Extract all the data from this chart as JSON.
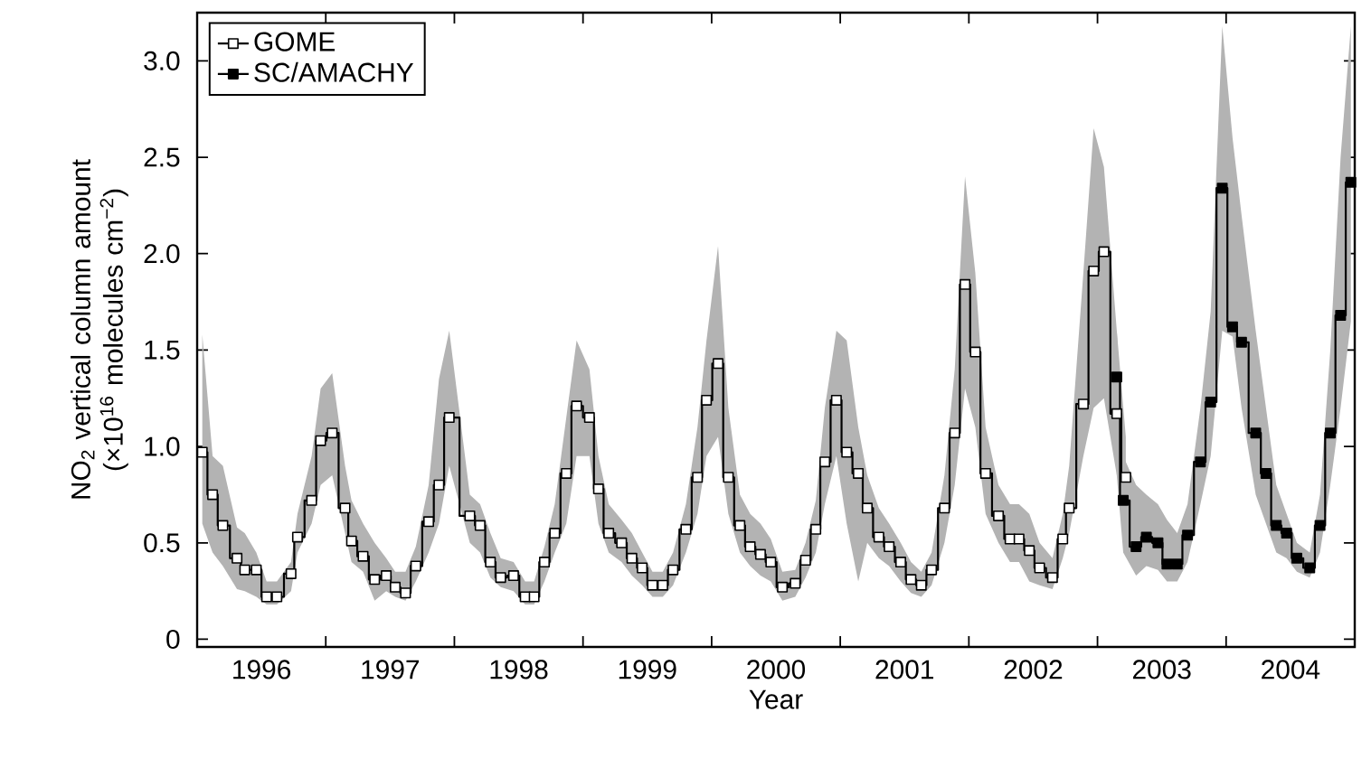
{
  "chart_data": {
    "type": "step",
    "xlabel": "Year",
    "ylabel": "NO$_{2}$ vertical column amount (×10$^{16}$ molecules cm$^{−2}$)",
    "xlim": [
      1996,
      2005
    ],
    "ylim": [
      -0.04,
      3.25
    ],
    "xticks": [
      {
        "value": 1997,
        "label": null
      },
      {
        "value": 1998,
        "label": null
      },
      {
        "value": 1999,
        "label": null
      },
      {
        "value": 2000,
        "label": null
      },
      {
        "value": 2001,
        "label": null
      },
      {
        "value": 2002,
        "label": null
      },
      {
        "value": 2003,
        "label": null
      },
      {
        "value": 2004,
        "label": null
      },
      {
        "value": 1996.5,
        "label": "1996"
      },
      {
        "value": 1997.5,
        "label": "1997"
      },
      {
        "value": 1998.5,
        "label": "1998"
      },
      {
        "value": 1999.5,
        "label": "1999"
      },
      {
        "value": 2000.5,
        "label": "2000"
      },
      {
        "value": 2001.5,
        "label": "2001"
      },
      {
        "value": 2002.5,
        "label": "2002"
      },
      {
        "value": 2003.5,
        "label": "2003"
      },
      {
        "value": 2004.5,
        "label": "2004"
      }
    ],
    "yticks": [
      0,
      0.5,
      {
        "value": 1,
        "label": "1.0"
      },
      1.5,
      {
        "value": 2,
        "label": "2.0"
      },
      2.5,
      {
        "value": 3,
        "label": "3.0"
      }
    ],
    "legend": "top left",
    "marker": "square",
    "line_style": "solid",
    "grid": false,
    "series": [
      {
        "name": "GOME",
        "color": "#000000",
        "x": [
          1996.04,
          1996.12,
          1996.2,
          1996.31,
          1996.37,
          1996.46,
          1996.54,
          1996.62,
          1996.73,
          1996.78,
          1996.89,
          1996.96,
          1997.05,
          1997.15,
          1997.2,
          1997.29,
          1997.38,
          1997.47,
          1997.54,
          1997.62,
          1997.7,
          1997.8,
          1997.88,
          1997.96,
          1998.12,
          1998.2,
          1998.28,
          1998.36,
          1998.46,
          1998.55,
          1998.62,
          1998.7,
          1998.78,
          1998.87,
          1998.95,
          1999.05,
          1999.12,
          1999.2,
          1999.3,
          1999.38,
          1999.46,
          1999.54,
          1999.62,
          1999.7,
          1999.8,
          1999.89,
          1999.96,
          2000.05,
          2000.13,
          2000.22,
          2000.3,
          2000.38,
          2000.46,
          2000.55,
          2000.65,
          2000.73,
          2000.81,
          2000.88,
          2000.97,
          2001.05,
          2001.14,
          2001.21,
          2001.3,
          2001.38,
          2001.47,
          2001.55,
          2001.63,
          2001.71,
          2001.81,
          2001.89,
          2001.97,
          2002.05,
          2002.13,
          2002.23,
          2002.32,
          2002.39,
          2002.47,
          2002.55,
          2002.65,
          2002.73,
          2002.78,
          2002.89,
          2002.97,
          2003.05,
          2003.15,
          2003.22
        ],
        "values": [
          0.97,
          0.75,
          0.59,
          0.42,
          0.36,
          0.36,
          0.22,
          0.22,
          0.34,
          0.53,
          0.72,
          1.03,
          1.07,
          0.68,
          0.51,
          0.43,
          0.31,
          0.33,
          0.27,
          0.24,
          0.38,
          0.61,
          0.8,
          1.15,
          0.64,
          0.59,
          0.4,
          0.32,
          0.33,
          0.22,
          0.22,
          0.4,
          0.55,
          0.86,
          1.21,
          1.15,
          0.78,
          0.55,
          0.5,
          0.42,
          0.37,
          0.28,
          0.28,
          0.36,
          0.57,
          0.84,
          1.24,
          1.43,
          0.84,
          0.59,
          0.48,
          0.44,
          0.4,
          0.27,
          0.29,
          0.41,
          0.57,
          0.92,
          1.24,
          0.97,
          0.86,
          0.68,
          0.53,
          0.48,
          0.4,
          0.31,
          0.28,
          0.36,
          0.68,
          1.07,
          1.84,
          1.49,
          0.86,
          0.64,
          0.52,
          0.52,
          0.46,
          0.37,
          0.32,
          0.52,
          0.68,
          1.22,
          1.91,
          2.01,
          1.17,
          0.84
        ],
        "upper": [
          1.58,
          0.95,
          0.9,
          0.58,
          0.55,
          0.45,
          0.3,
          0.3,
          0.4,
          0.65,
          0.95,
          1.3,
          1.38,
          0.9,
          0.72,
          0.6,
          0.5,
          0.42,
          0.35,
          0.35,
          0.48,
          0.8,
          1.35,
          1.6,
          0.75,
          0.7,
          0.55,
          0.42,
          0.4,
          0.3,
          0.3,
          0.48,
          0.7,
          1.15,
          1.55,
          1.4,
          0.95,
          0.7,
          0.62,
          0.55,
          0.45,
          0.35,
          0.35,
          0.45,
          0.7,
          1.1,
          1.55,
          2.04,
          1.2,
          0.75,
          0.65,
          0.6,
          0.52,
          0.35,
          0.36,
          0.5,
          0.72,
          1.2,
          1.6,
          1.55,
          1.1,
          0.85,
          0.68,
          0.6,
          0.5,
          0.4,
          0.35,
          0.45,
          0.85,
          1.4,
          2.4,
          1.9,
          1.1,
          0.8,
          0.7,
          0.7,
          0.65,
          0.5,
          0.42,
          0.65,
          0.9,
          1.9,
          2.65,
          2.45,
          1.6,
          1.05
        ],
        "lower": [
          0.6,
          0.45,
          0.38,
          0.26,
          0.25,
          0.22,
          0.18,
          0.18,
          0.25,
          0.45,
          0.6,
          0.8,
          0.85,
          0.55,
          0.4,
          0.35,
          0.2,
          0.25,
          0.22,
          0.2,
          0.3,
          0.45,
          0.6,
          0.9,
          0.5,
          0.45,
          0.32,
          0.27,
          0.25,
          0.18,
          0.18,
          0.3,
          0.45,
          0.6,
          0.95,
          0.95,
          0.6,
          0.45,
          0.4,
          0.33,
          0.28,
          0.22,
          0.22,
          0.28,
          0.45,
          0.65,
          0.95,
          1.05,
          0.65,
          0.45,
          0.38,
          0.33,
          0.3,
          0.2,
          0.22,
          0.32,
          0.45,
          0.7,
          0.95,
          0.6,
          0.3,
          0.5,
          0.42,
          0.38,
          0.3,
          0.24,
          0.22,
          0.28,
          0.5,
          0.8,
          1.3,
          1.1,
          0.65,
          0.5,
          0.4,
          0.4,
          0.3,
          0.28,
          0.26,
          0.42,
          0.55,
          0.95,
          1.2,
          1.25,
          0.85,
          0.62
        ]
      },
      {
        "name": "SC/AMACHY",
        "color": "#000000",
        "x": [
          2003.15,
          2003.2,
          2003.3,
          2003.38,
          2003.47,
          2003.54,
          2003.62,
          2003.7,
          2003.8,
          2003.88,
          2003.97,
          2004.05,
          2004.12,
          2004.23,
          2004.31,
          2004.39,
          2004.47,
          2004.55,
          2004.65,
          2004.73,
          2004.81,
          2004.89,
          2004.97
        ],
        "values": [
          1.36,
          0.72,
          0.48,
          0.53,
          0.5,
          0.39,
          0.39,
          0.54,
          0.92,
          1.23,
          2.34,
          1.62,
          1.54,
          1.07,
          0.86,
          0.59,
          0.55,
          0.42,
          0.37,
          0.59,
          1.07,
          1.68,
          2.37
        ],
        "upper": [
          1.6,
          0.95,
          0.8,
          0.75,
          0.7,
          0.62,
          0.55,
          0.7,
          1.2,
          1.7,
          3.18,
          2.6,
          2.2,
          1.6,
          1.2,
          0.8,
          0.65,
          0.5,
          0.45,
          0.75,
          1.5,
          2.5,
          3.18
        ],
        "lower": [
          0.85,
          0.45,
          0.33,
          0.38,
          0.36,
          0.3,
          0.3,
          0.4,
          0.7,
          0.95,
          1.6,
          1.57,
          1.2,
          0.75,
          0.6,
          0.45,
          0.42,
          0.35,
          0.32,
          0.45,
          0.8,
          1.2,
          1.65
        ]
      }
    ]
  }
}
